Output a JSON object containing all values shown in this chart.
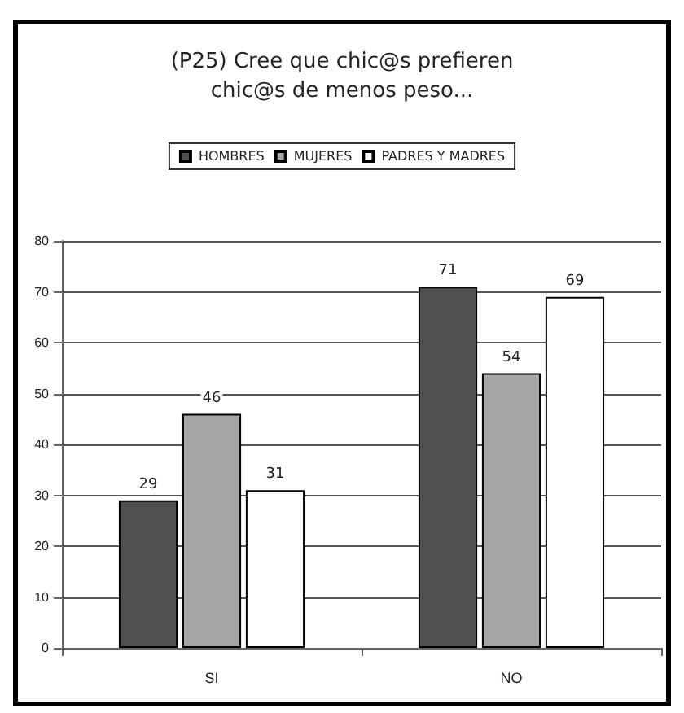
{
  "chart_data": {
    "type": "bar",
    "title": "(P25) Cree que chic@s prefieren\nchic@s de menos peso...",
    "categories": [
      "SI",
      "NO"
    ],
    "series": [
      {
        "name": "HOMBRES",
        "color": "#505050",
        "values": [
          29,
          71
        ]
      },
      {
        "name": "MUJERES",
        "color": "#a6a6a6",
        "values": [
          46,
          54
        ]
      },
      {
        "name": "PADRES Y MADRES",
        "color": "#ffffff",
        "values": [
          31,
          69
        ]
      }
    ],
    "ylim": [
      0,
      80
    ],
    "yticks": [
      0,
      10,
      20,
      30,
      40,
      50,
      60,
      70,
      80
    ],
    "grid": "y",
    "legend": "top",
    "data_labels": true
  }
}
